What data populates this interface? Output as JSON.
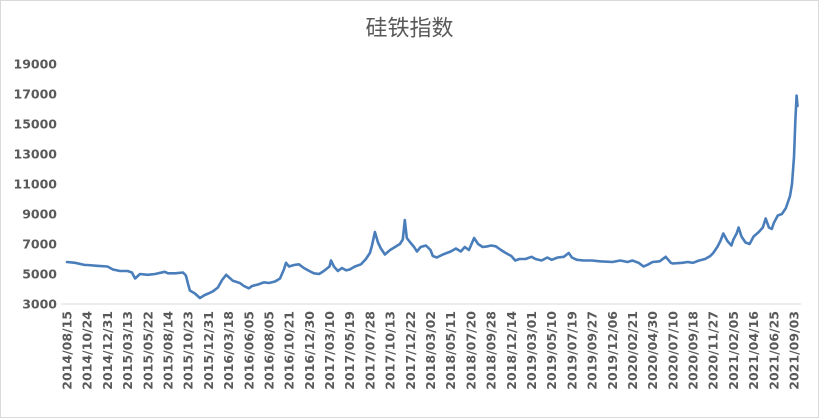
{
  "colors": {
    "text": "#595959",
    "axis_line": "#d9d9d9",
    "border": "#d9d9d9",
    "background": "#ffffff"
  },
  "chart_data": {
    "type": "line",
    "title": "硅铁指数",
    "xlabel": "",
    "ylabel": "",
    "ylim": [
      3000,
      19000
    ],
    "grid": false,
    "yticks": [
      3000,
      5000,
      7000,
      9000,
      11000,
      13000,
      15000,
      17000,
      19000
    ],
    "xticks": [
      "2014/08/15",
      "2014/10/24",
      "2014/12/31",
      "2015/03/13",
      "2015/05/22",
      "2015/08/14",
      "2015/10/23",
      "2015/12/31",
      "2016/03/18",
      "2016/06/05",
      "2016/08/05",
      "2016/10/21",
      "2016/12/30",
      "2017/03/10",
      "2017/05/19",
      "2017/07/28",
      "2017/10/13",
      "2017/12/22",
      "2018/03/02",
      "2018/05/11",
      "2018/07/20",
      "2018/09/28",
      "2018/12/14",
      "2019/03/01",
      "2019/05/10",
      "2019/07/19",
      "2019/09/27",
      "2019/12/06",
      "2020/02/21",
      "2020/04/30",
      "2020/07/10",
      "2020/09/18",
      "2020/11/27",
      "2021/02/05",
      "2021/04/16",
      "2021/06/25",
      "2021/09/03"
    ],
    "series": [
      {
        "color": "#4a7ebb",
        "points": [
          [
            "2014/08/15",
            5800
          ],
          [
            "2014/09/12",
            5750
          ],
          [
            "2014/10/16",
            5600
          ],
          [
            "2014/10/24",
            5600
          ],
          [
            "2014/11/26",
            5550
          ],
          [
            "2014/12/31",
            5500
          ],
          [
            "2015/01/20",
            5300
          ],
          [
            "2015/02/14",
            5200
          ],
          [
            "2015/03/13",
            5200
          ],
          [
            "2015/03/28",
            5100
          ],
          [
            "2015/04/08",
            4700
          ],
          [
            "2015/04/25",
            5000
          ],
          [
            "2015/05/22",
            4950
          ],
          [
            "2015/06/21",
            5000
          ],
          [
            "2015/08/01",
            5150
          ],
          [
            "2015/08/14",
            5050
          ],
          [
            "2015/09/08",
            5050
          ],
          [
            "2015/10/05",
            5100
          ],
          [
            "2015/10/15",
            4900
          ],
          [
            "2015/10/23",
            4300
          ],
          [
            "2015/10/29",
            3900
          ],
          [
            "2015/11/15",
            3700
          ],
          [
            "2015/12/02",
            3400
          ],
          [
            "2015/12/19",
            3600
          ],
          [
            "2015/12/31",
            3700
          ],
          [
            "2016/01/18",
            3850
          ],
          [
            "2016/02/06",
            4100
          ],
          [
            "2016/02/22",
            4600
          ],
          [
            "2016/03/09",
            4950
          ],
          [
            "2016/03/18",
            4800
          ],
          [
            "2016/04/04",
            4550
          ],
          [
            "2016/05/01",
            4400
          ],
          [
            "2016/05/17",
            4200
          ],
          [
            "2016/06/05",
            4050
          ],
          [
            "2016/06/15",
            4200
          ],
          [
            "2016/07/03",
            4300
          ],
          [
            "2016/07/21",
            4450
          ],
          [
            "2016/08/05",
            4400
          ],
          [
            "2016/08/28",
            4500
          ],
          [
            "2016/09/16",
            4700
          ],
          [
            "2016/10/01",
            5300
          ],
          [
            "2016/10/09",
            5750
          ],
          [
            "2016/10/21",
            5500
          ],
          [
            "2016/11/07",
            5600
          ],
          [
            "2016/11/24",
            5650
          ],
          [
            "2016/12/11",
            5400
          ],
          [
            "2016/12/30",
            5200
          ],
          [
            "2017/01/15",
            5050
          ],
          [
            "2017/02/02",
            5000
          ],
          [
            "2017/02/18",
            5200
          ],
          [
            "2017/03/10",
            5500
          ],
          [
            "2017/03/15",
            5900
          ],
          [
            "2017/03/25",
            5500
          ],
          [
            "2017/04/08",
            5200
          ],
          [
            "2017/04/22",
            5400
          ],
          [
            "2017/05/06",
            5250
          ],
          [
            "2017/05/19",
            5300
          ],
          [
            "2017/06/06",
            5500
          ],
          [
            "2017/06/27",
            5650
          ],
          [
            "2017/07/14",
            6000
          ],
          [
            "2017/07/28",
            6400
          ],
          [
            "2017/08/05",
            6900
          ],
          [
            "2017/08/16",
            7800
          ],
          [
            "2017/08/28",
            7100
          ],
          [
            "2017/09/08",
            6700
          ],
          [
            "2017/09/23",
            6300
          ],
          [
            "2017/10/13",
            6600
          ],
          [
            "2017/10/30",
            6800
          ],
          [
            "2017/11/16",
            7000
          ],
          [
            "2017/11/26",
            7300
          ],
          [
            "2017/12/03",
            8600
          ],
          [
            "2017/12/10",
            7400
          ],
          [
            "2017/12/22",
            7100
          ],
          [
            "2018/01/04",
            6800
          ],
          [
            "2018/01/14",
            6500
          ],
          [
            "2018/01/27",
            6800
          ],
          [
            "2018/02/14",
            6900
          ],
          [
            "2018/03/02",
            6600
          ],
          [
            "2018/03/10",
            6200
          ],
          [
            "2018/03/24",
            6100
          ],
          [
            "2018/04/14",
            6300
          ],
          [
            "2018/05/11",
            6500
          ],
          [
            "2018/05/29",
            6700
          ],
          [
            "2018/06/15",
            6500
          ],
          [
            "2018/06/29",
            6800
          ],
          [
            "2018/07/13",
            6600
          ],
          [
            "2018/07/20",
            6900
          ],
          [
            "2018/07/31",
            7400
          ],
          [
            "2018/08/14",
            7000
          ],
          [
            "2018/08/30",
            6800
          ],
          [
            "2018/09/17",
            6850
          ],
          [
            "2018/09/28",
            6900
          ],
          [
            "2018/10/16",
            6850
          ],
          [
            "2018/11/05",
            6600
          ],
          [
            "2018/11/23",
            6400
          ],
          [
            "2018/12/14",
            6200
          ],
          [
            "2018/12/29",
            5900
          ],
          [
            "2019/01/14",
            6000
          ],
          [
            "2019/02/06",
            6000
          ],
          [
            "2019/03/01",
            6150
          ],
          [
            "2019/03/15",
            6000
          ],
          [
            "2019/04/05",
            5900
          ],
          [
            "2019/04/25",
            6100
          ],
          [
            "2019/05/10",
            5950
          ],
          [
            "2019/05/31",
            6100
          ],
          [
            "2019/06/21",
            6150
          ],
          [
            "2019/07/08",
            6400
          ],
          [
            "2019/07/19",
            6100
          ],
          [
            "2019/08/05",
            5950
          ],
          [
            "2019/08/29",
            5900
          ],
          [
            "2019/09/27",
            5900
          ],
          [
            "2019/10/24",
            5850
          ],
          [
            "2019/12/06",
            5800
          ],
          [
            "2020/01/06",
            5900
          ],
          [
            "2020/02/02",
            5800
          ],
          [
            "2020/02/21",
            5900
          ],
          [
            "2020/03/13",
            5750
          ],
          [
            "2020/03/30",
            5500
          ],
          [
            "2020/04/16",
            5650
          ],
          [
            "2020/04/30",
            5800
          ],
          [
            "2020/05/25",
            5850
          ],
          [
            "2020/06/15",
            6150
          ],
          [
            "2020/07/03",
            5750
          ],
          [
            "2020/07/10",
            5700
          ],
          [
            "2020/08/11",
            5750
          ],
          [
            "2020/08/31",
            5800
          ],
          [
            "2020/09/18",
            5750
          ],
          [
            "2020/10/09",
            5900
          ],
          [
            "2020/10/30",
            6000
          ],
          [
            "2020/11/17",
            6200
          ],
          [
            "2020/11/27",
            6400
          ],
          [
            "2020/12/11",
            6800
          ],
          [
            "2020/12/22",
            7200
          ],
          [
            "2021/01/01",
            7700
          ],
          [
            "2021/01/15",
            7200
          ],
          [
            "2021/01/29",
            6900
          ],
          [
            "2021/02/05",
            7300
          ],
          [
            "2021/02/16",
            7700
          ],
          [
            "2021/02/23",
            8100
          ],
          [
            "2021/03/05",
            7500
          ],
          [
            "2021/03/19",
            7100
          ],
          [
            "2021/04/02",
            7000
          ],
          [
            "2021/04/16",
            7500
          ],
          [
            "2021/05/04",
            7800
          ],
          [
            "2021/05/18",
            8100
          ],
          [
            "2021/05/28",
            8700
          ],
          [
            "2021/06/08",
            8100
          ],
          [
            "2021/06/18",
            8000
          ],
          [
            "2021/06/25",
            8400
          ],
          [
            "2021/07/09",
            8900
          ],
          [
            "2021/07/23",
            9000
          ],
          [
            "2021/08/06",
            9400
          ],
          [
            "2021/08/20",
            10200
          ],
          [
            "2021/08/27",
            11000
          ],
          [
            "2021/09/03",
            12800
          ],
          [
            "2021/09/08",
            15300
          ],
          [
            "2021/09/12",
            16900
          ],
          [
            "2021/09/15",
            16200
          ]
        ]
      }
    ]
  }
}
